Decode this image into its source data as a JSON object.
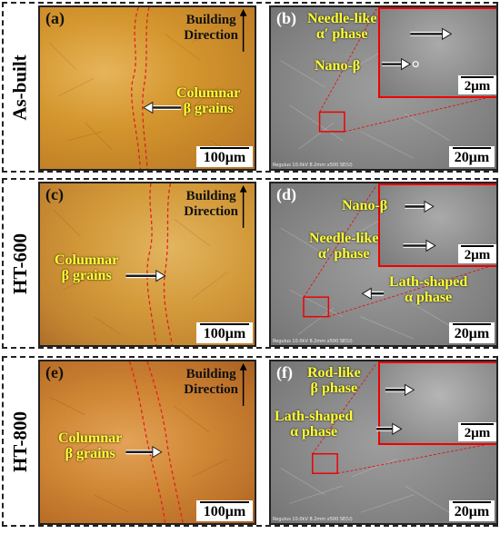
{
  "rows": [
    {
      "label": "As-built",
      "om": {
        "panel_label": "(a)",
        "direction_line1": "Building",
        "direction_line2": "Direction",
        "grain_line1": "Columnar",
        "grain_line2": "β grains",
        "scale": "100μm"
      },
      "sem": {
        "panel_label": "(b)",
        "ann1_line1": "Needle-like",
        "ann1_line2": "α′ phase",
        "ann2": "Nano-β",
        "inset_scale": "2μm",
        "scale": "20μm"
      }
    },
    {
      "label": "HT-600",
      "om": {
        "panel_label": "(c)",
        "direction_line1": "Building",
        "direction_line2": "Direction",
        "grain_line1": "Columnar",
        "grain_line2": "β grains",
        "scale": "100μm"
      },
      "sem": {
        "panel_label": "(d)",
        "ann1": "Nano-β",
        "ann2_line1": "Needle-like",
        "ann2_line2": "α′ phase",
        "ann3_line1": "Lath-shaped",
        "ann3_line2": "α phase",
        "inset_scale": "2μm",
        "scale": "20μm"
      }
    },
    {
      "label": "HT-800",
      "om": {
        "panel_label": "(e)",
        "direction_line1": "Building",
        "direction_line2": "Direction",
        "grain_line1": "Columnar",
        "grain_line2": "β grains",
        "scale": "100μm"
      },
      "sem": {
        "panel_label": "(f)",
        "ann1_line1": "Rod-like",
        "ann1_line2": "β phase",
        "ann2_line1": "Lath-shaped",
        "ann2_line2": "α phase",
        "inset_scale": "2μm",
        "scale": "20μm"
      }
    }
  ],
  "colors": {
    "annotation": "#ffff33",
    "grain_boundary": "#e02020",
    "inset_frame": "#e00000"
  },
  "sem_footer": "Regulus 10.0kV 8.2mm x500 SE(U)"
}
